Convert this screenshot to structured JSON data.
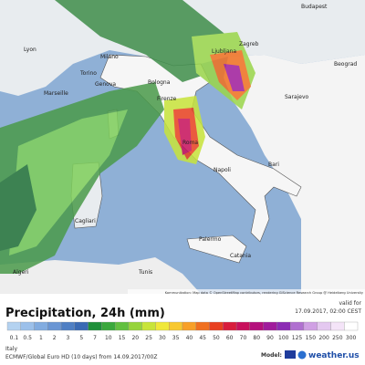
{
  "map": {
    "cities": [
      "Budapest",
      "Zagreb",
      "Ljubljana",
      "Milano",
      "Torino",
      "Genova",
      "Bologna",
      "Firenze",
      "Roma",
      "Napoli",
      "Bari",
      "Palermo",
      "Catania",
      "Cagliari",
      "Sarajevo",
      "Beograd",
      "Lyon",
      "Marseille",
      "Algeri",
      "Tunis"
    ],
    "attribution": "Kommunikation: Map data © OpenStreetMap contributors, rendering GIScience Research Group @ Heidelberg University"
  },
  "footer": {
    "title": "Precipitation, 24h (mm)",
    "valid_label": "valid for",
    "valid_time": "17.09.2017, 02:00 CEST",
    "region": "Italy",
    "model_run": "ECMWF/Global Euro HD (10 days) from 14.09.2017/00Z",
    "model_label": "Model:",
    "brand": "weather.us"
  },
  "legend": {
    "labels": [
      "0.1",
      "0.5",
      "1",
      "2",
      "3",
      "5",
      "7",
      "10",
      "15",
      "20",
      "25",
      "30",
      "35",
      "40",
      "45",
      "50",
      "60",
      "70",
      "80",
      "90",
      "100",
      "125",
      "150",
      "200",
      "250",
      "300"
    ],
    "colors": [
      "#b4d2f0",
      "#9cc0ea",
      "#82ace0",
      "#6a96d4",
      "#4f7fc4",
      "#3a6ab4",
      "#1f8f3a",
      "#3aa83c",
      "#62c040",
      "#96d43c",
      "#c8e43a",
      "#f0e83a",
      "#f8c830",
      "#f8a028",
      "#f07020",
      "#e84020",
      "#d81c3c",
      "#c8105c",
      "#b4107c",
      "#a01c9c",
      "#8c2cb4",
      "#b070d0",
      "#d0a0e4",
      "#e4c8f0",
      "#f4e4f8",
      "#ffffff"
    ]
  }
}
